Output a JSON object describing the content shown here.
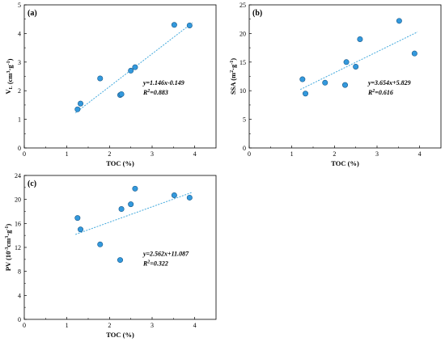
{
  "colors": {
    "point_fill": "#3399dd",
    "point_stroke": "#1a5a8a",
    "fit_line": "#44aadd"
  },
  "chart_data": [
    {
      "type": "scatter",
      "panel_label": "(a)",
      "xlabel": "TOC (%)",
      "ylabel": "V_L (cm3·g-1)",
      "ylabel_parts": {
        "main": "V",
        "sub": "L",
        "unit_pre": " (cm",
        "sup1": "3",
        "unit_mid": "·g",
        "sup2": "-1",
        "unit_post": ")"
      },
      "xlim": [
        0,
        4.5
      ],
      "ylim": [
        0,
        5
      ],
      "xticks": [
        0,
        1,
        2,
        3,
        4
      ],
      "yticks": [
        0,
        1,
        2,
        3,
        4,
        5
      ],
      "xtick_labels": [
        "0",
        "1",
        "2",
        "3",
        "4"
      ],
      "ytick_labels": [
        "0",
        "1",
        "2",
        "3",
        "4",
        "5"
      ],
      "x": [
        1.25,
        1.32,
        1.78,
        2.25,
        2.28,
        2.5,
        2.6,
        3.52,
        3.88
      ],
      "y": [
        1.35,
        1.55,
        2.43,
        1.85,
        1.88,
        2.7,
        2.82,
        4.3,
        4.28
      ],
      "fit": {
        "slope": 1.146,
        "intercept": -0.149,
        "x_range": [
          1.2,
          3.95
        ]
      },
      "equation": "y=1.146x-0.149",
      "r2_label": "R",
      "r2_sup": "2",
      "r2_value": "=0.883",
      "grid": false
    },
    {
      "type": "scatter",
      "panel_label": "(b)",
      "xlabel": "TOC (%)",
      "ylabel": "SSA (m2·g-1)",
      "ylabel_parts": {
        "main": "SSA",
        "sub": "",
        "unit_pre": " (m",
        "sup1": "2",
        "unit_mid": "·g",
        "sup2": "-1",
        "unit_post": ")"
      },
      "xlim": [
        0,
        4.5
      ],
      "ylim": [
        0,
        25
      ],
      "xticks": [
        0,
        1,
        2,
        3,
        4
      ],
      "yticks": [
        0,
        5,
        10,
        15,
        20,
        25
      ],
      "xtick_labels": [
        "0",
        "1",
        "2",
        "3",
        "4"
      ],
      "ytick_labels": [
        "0",
        "5",
        "10",
        "15",
        "20",
        "25"
      ],
      "x": [
        1.25,
        1.32,
        1.78,
        2.25,
        2.28,
        2.5,
        2.6,
        3.52,
        3.88
      ],
      "y": [
        12.0,
        9.5,
        11.4,
        11.0,
        15.0,
        14.2,
        19.0,
        22.2,
        16.5
      ],
      "fit": {
        "slope": 3.654,
        "intercept": 5.829,
        "x_range": [
          1.2,
          3.95
        ]
      },
      "equation": "y=3.654x+5.829",
      "r2_label": "R",
      "r2_sup": "2",
      "r2_value": "=0.616",
      "grid": false
    },
    {
      "type": "scatter",
      "panel_label": "(c)",
      "xlabel": "TOC (%)",
      "ylabel": "PV (10-3cm3·g-1)",
      "ylabel_parts": {
        "main": "PV",
        "sub": "",
        "unit_pre": " (10",
        "sup0": "-3",
        "unit_a": "cm",
        "sup1": "3",
        "unit_mid": "·g",
        "sup2": "-1",
        "unit_post": ")"
      },
      "xlim": [
        0,
        4.5
      ],
      "ylim": [
        0,
        24
      ],
      "xticks": [
        0,
        1,
        2,
        3,
        4
      ],
      "yticks": [
        0,
        4,
        8,
        12,
        16,
        20,
        24
      ],
      "xtick_labels": [
        "0",
        "1",
        "2",
        "3",
        "4"
      ],
      "ytick_labels": [
        "0",
        "4",
        "8",
        "12",
        "16",
        "20",
        "24"
      ],
      "x": [
        1.25,
        1.32,
        1.78,
        2.25,
        2.28,
        2.5,
        2.6,
        3.52,
        3.88
      ],
      "y": [
        16.9,
        15.0,
        12.5,
        9.9,
        18.4,
        19.2,
        21.8,
        20.7,
        20.3
      ],
      "fit": {
        "slope": 2.562,
        "intercept": 11.087,
        "x_range": [
          1.2,
          3.95
        ]
      },
      "equation": "y=2.562x+11.087",
      "r2_label": "R",
      "r2_sup": "2",
      "r2_value": "=0.322",
      "grid": false
    }
  ]
}
